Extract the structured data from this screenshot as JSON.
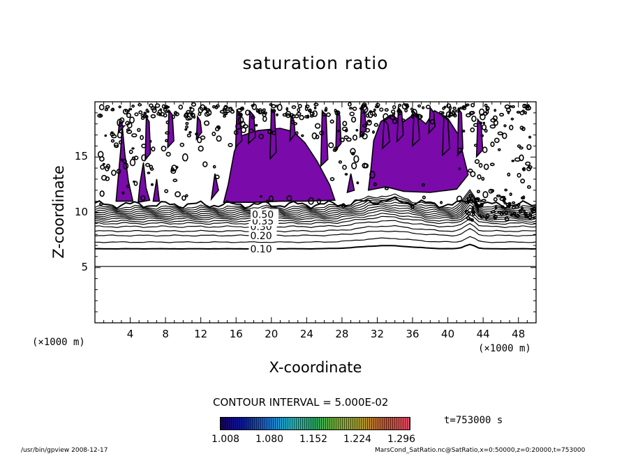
{
  "chart_data": {
    "type": "contour",
    "title": "saturation ratio",
    "xlabel": "X-coordinate",
    "ylabel": "Z-coordinate",
    "x_unit_label": "(×1000 m)",
    "xlim": [
      0,
      50
    ],
    "ylim": [
      0,
      20
    ],
    "x_ticks": [
      4,
      8,
      12,
      16,
      20,
      24,
      28,
      32,
      36,
      40,
      44,
      48
    ],
    "y_ticks": [
      5,
      10,
      15
    ],
    "contour_interval_text": "CONTOUR INTERVAL = 5.000E-02",
    "contour_labels": [
      {
        "text": "0.10",
        "x": 17.6,
        "z": 6.7
      },
      {
        "text": "0.20",
        "x": 17.6,
        "z": 7.9
      },
      {
        "text": "0.30",
        "x": 17.6,
        "z": 8.7
      },
      {
        "text": "0.35",
        "x": 17.8,
        "z": 9.2
      },
      {
        "text": "0.50",
        "x": 17.8,
        "z": 9.8
      }
    ],
    "shaded_regions_note": "saturation ratio > 1.008 (purple)",
    "time_label": "t=753000 s",
    "colorbar": {
      "tick_labels": [
        "1.008",
        "1.080",
        "1.152",
        "1.224",
        "1.296"
      ],
      "colors": [
        "#1a0060",
        "#0b1a9e",
        "#1c6fd0",
        "#20b8c8",
        "#2aa860",
        "#7ab030",
        "#b09a30",
        "#c85030",
        "#e84a6a"
      ]
    },
    "shade_color": "#7a0aaa",
    "footer_left": "/usr/bin/gpview   2008-12-17",
    "footer_right": "MarsCond_SatRatio.nc@SatRatio,x=0:50000,z=0:20000,t=753000"
  }
}
